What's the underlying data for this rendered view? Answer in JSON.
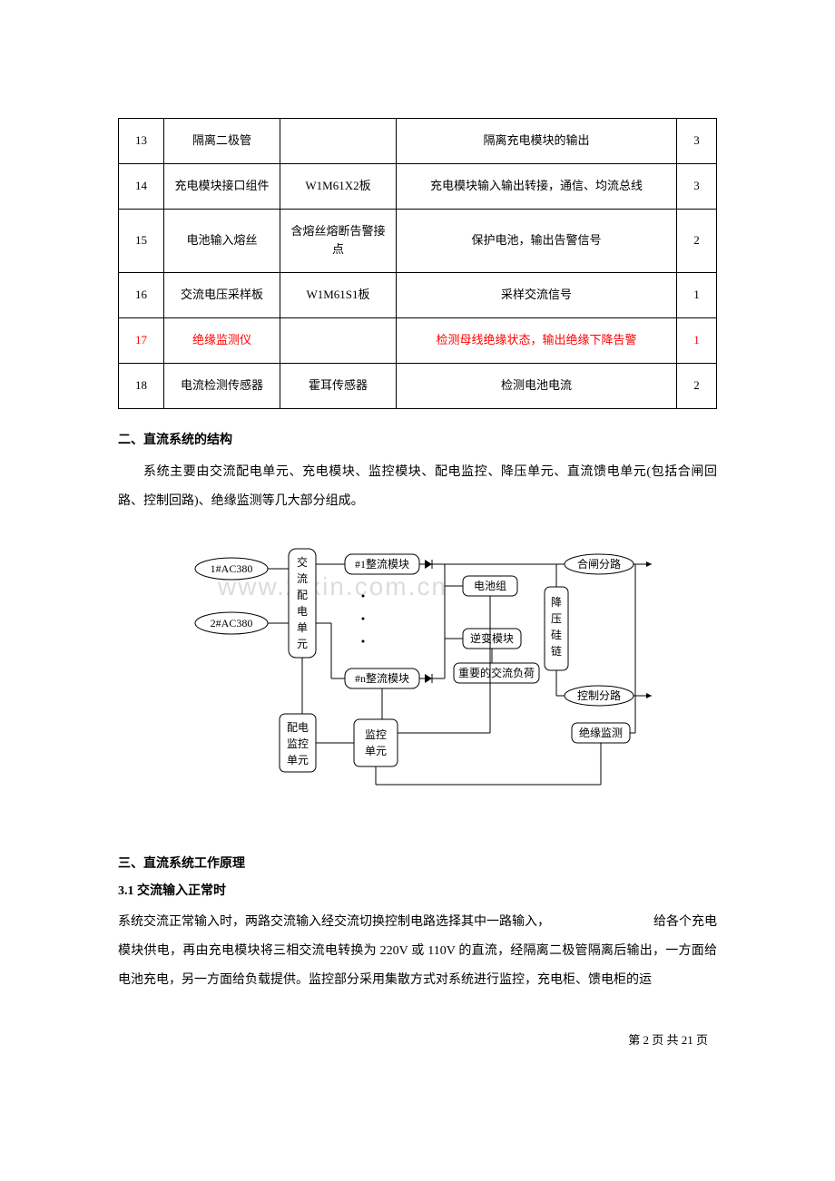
{
  "table": {
    "rows": [
      {
        "idx": "13",
        "name": "隔离二极管",
        "spec": "",
        "desc": "隔离充电模块的输出",
        "qty": "3",
        "red": false
      },
      {
        "idx": "14",
        "name": "充电模块接口组件",
        "spec": "W1M61X2板",
        "desc": "充电模块输入输出转接，通信、均流总线",
        "qty": "3",
        "red": false
      },
      {
        "idx": "15",
        "name": "电池输入熔丝",
        "spec": "含熔丝熔断告警接点",
        "desc": "保护电池，输出告警信号",
        "qty": "2",
        "red": false
      },
      {
        "idx": "16",
        "name": "交流电压采样板",
        "spec": "W1M61S1板",
        "desc": "采样交流信号",
        "qty": "1",
        "red": false
      },
      {
        "idx": "17",
        "name": "绝缘监测仪",
        "spec": "",
        "desc": "检测母线绝缘状态，输出绝缘下降告警",
        "qty": "1",
        "red": true
      },
      {
        "idx": "18",
        "name": "电流检测传感器",
        "spec": "霍耳传感器",
        "desc": "检测电池电流",
        "qty": "2",
        "red": false
      }
    ]
  },
  "section2": {
    "title": "二、直流系统的结构",
    "body": "系统主要由交流配电单元、充电模块、监控模块、配电监控、降压单元、直流馈电单元(包括合闸回路、控制回路)、绝缘监测等几大部分组成。"
  },
  "diagram": {
    "watermark": "www.zixin.com.cn",
    "labels": {
      "ac_in1": "1#AC380",
      "ac_in2": "2#AC380",
      "ac_dist": "交流配电单元",
      "rect1": "#1整流模块",
      "rectn": "#n整流模块",
      "battery": "电池组",
      "inverter": "逆变模块",
      "ac_load": "重要的交流负荷",
      "step_down": "降压硅链",
      "close_branch": "合闸分路",
      "ctrl_branch": "控制分路",
      "insul_mon": "绝缘监测",
      "dist_mon": "配电监控单元",
      "mon_unit": "监控单元"
    }
  },
  "section3": {
    "title": "三、直流系统工作原理",
    "sub_title": "3.1 交流输入正常时",
    "body_part1": "系统交流正常输入时，两路交流输入经交流切换控制电路选择其中一路输入，",
    "body_part2": "给各个充电",
    "body_rest": "模块供电，再由充电模块将三相交流电转换为 220V 或 110V 的直流，经隔离二极管隔离后输出，一方面给电池充电，另一方面给负载提供。监控部分采用集散方式对系统进行监控，充电柜、馈电柜的运"
  },
  "footer": {
    "text": "第 2 页 共 21 页"
  }
}
